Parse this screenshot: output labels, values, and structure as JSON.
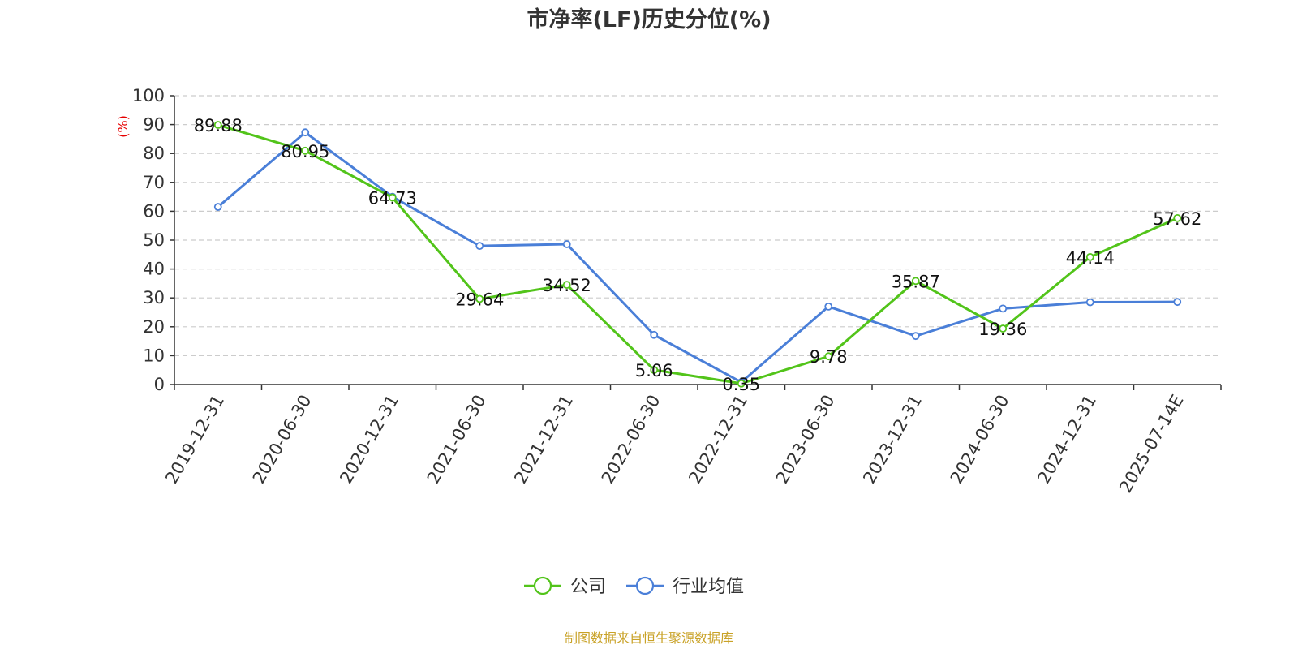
{
  "chart_data": {
    "type": "line",
    "title": "市净率(LF)历史分位(%)",
    "ylabel": "(%)",
    "xlabel": "",
    "ylim": [
      0,
      100
    ],
    "yticks": [
      0,
      10,
      20,
      30,
      40,
      50,
      60,
      70,
      80,
      90,
      100
    ],
    "grid": true,
    "legend_position": "bottom",
    "categories": [
      "2019-12-31",
      "2020-06-30",
      "2020-12-31",
      "2021-06-30",
      "2021-12-31",
      "2022-06-30",
      "2022-12-31",
      "2023-06-30",
      "2023-12-31",
      "2024-06-30",
      "2024-12-31",
      "2025-07-14E"
    ],
    "series": [
      {
        "name": "公司",
        "color": "#52c41a",
        "values": [
          89.88,
          80.95,
          64.73,
          29.64,
          34.52,
          5.06,
          0.35,
          9.78,
          35.87,
          19.36,
          44.14,
          57.62
        ],
        "data_labels": [
          "89.88",
          "80.95",
          "64.73",
          "29.64",
          "34.52",
          "5.06",
          "0.35",
          "9.78",
          "35.87",
          "19.36",
          "44.14",
          "57.62"
        ]
      },
      {
        "name": "行业均值",
        "color": "#4a7fd8",
        "values": [
          61.5,
          87.3,
          65.0,
          48.0,
          48.6,
          17.2,
          0.8,
          27.0,
          16.8,
          26.3,
          28.5,
          28.6
        ]
      }
    ],
    "source": "制图数据来自恒生聚源数据库"
  }
}
